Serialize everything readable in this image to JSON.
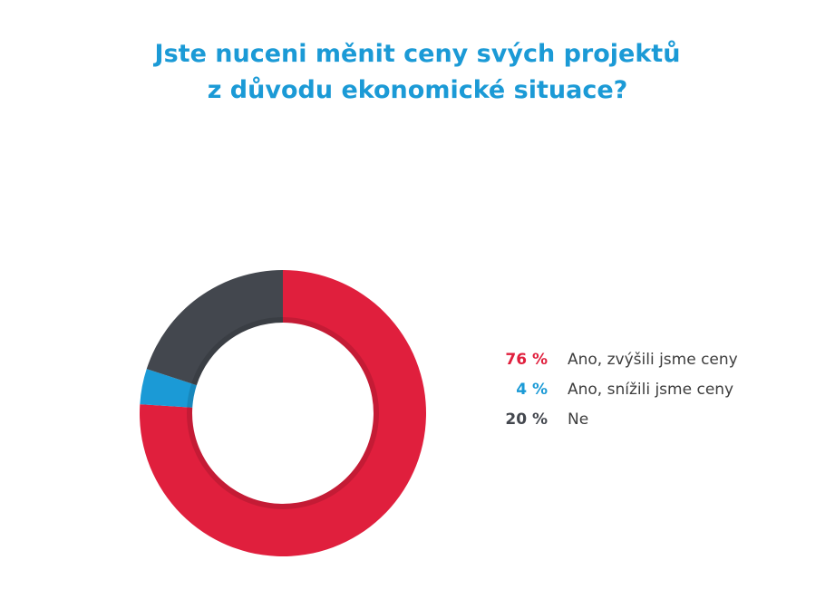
{
  "title_lines": [
    "Jste nuceni měnit ceny svých projektů",
    "z důvodu ekonomické situace?"
  ],
  "colors": {
    "title": "#1b9ad6",
    "red": "#e01f3d",
    "blue": "#1b9ad6",
    "dark": "#43474e"
  },
  "chart_data": {
    "type": "pie",
    "variant": "donut",
    "title": "Jste nuceni měnit ceny svých projektů z důvodu ekonomické situace?",
    "legend_placement": "right",
    "slices": [
      {
        "label": "Ano, zvýšili jsme ceny",
        "value": 76,
        "value_label": "76 %",
        "color": "#e01f3d"
      },
      {
        "label": "Ano, snížili jsme ceny",
        "value": 4,
        "value_label": "4 %",
        "color": "#1b9ad6"
      },
      {
        "label": "Ne",
        "value": 20,
        "value_label": "20 %",
        "color": "#43474e"
      }
    ]
  }
}
